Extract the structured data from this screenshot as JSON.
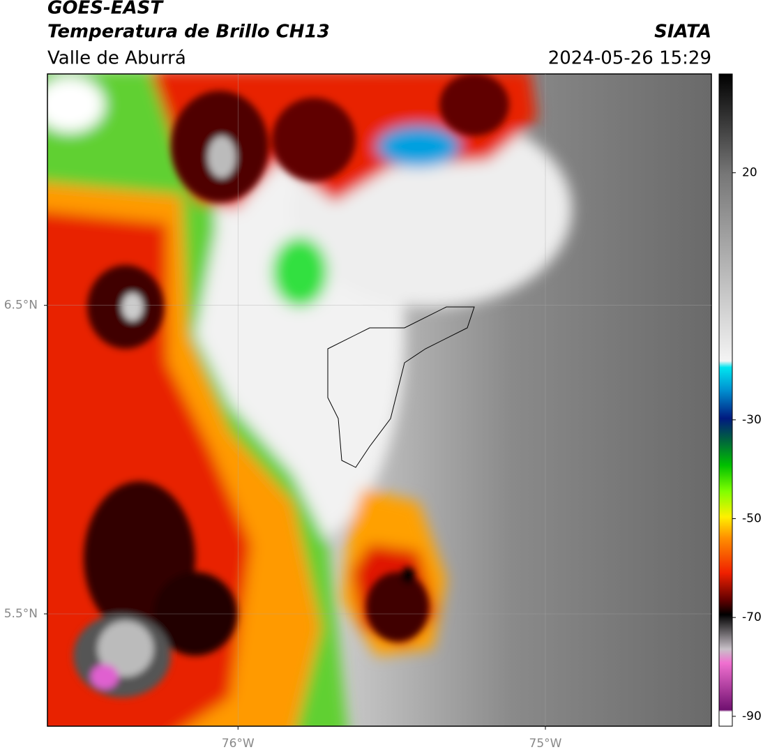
{
  "map": {
    "type": "map",
    "title": "GOES-EAST",
    "subtitle": "Temperatura de Brillo CH13",
    "region": "Valle de Aburrá",
    "source": "SIATA",
    "timestamp": "2024-05-26 15:29",
    "xlim": [
      -76.62,
      -74.46
    ],
    "ylim": [
      5.136,
      7.25
    ],
    "xticks": [
      {
        "value": -76,
        "label": "76°W"
      },
      {
        "value": -75,
        "label": "75°W"
      }
    ],
    "yticks": [
      {
        "value": 6.5,
        "label": "6.5°N"
      },
      {
        "value": 5.5,
        "label": "5.5°N"
      }
    ],
    "grid": true,
    "colorbar": {
      "lim": [
        -92,
        40
      ],
      "ticks": [
        20,
        -30,
        -50,
        -70,
        -90
      ]
    }
  }
}
